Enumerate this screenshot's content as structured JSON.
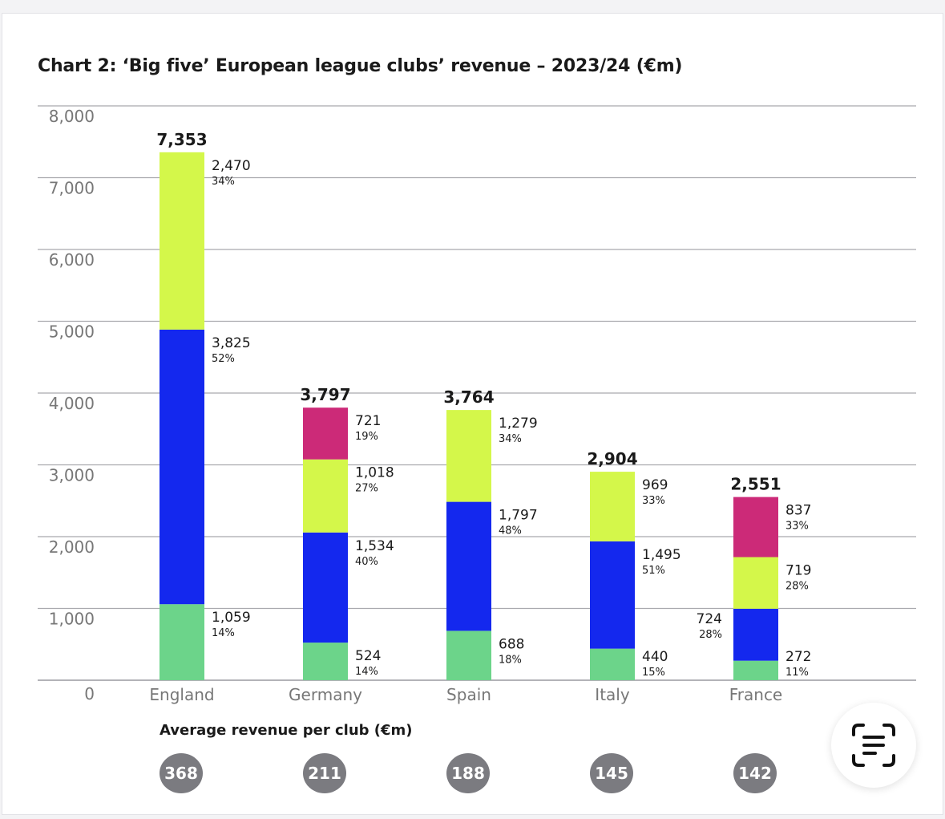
{
  "chart_title": "Chart 2: ‘Big five’ European league clubs’ revenue – 2023/24 (€m)",
  "chart_data": {
    "type": "bar",
    "stacked": true,
    "title": "Chart 2: ‘Big five’ European league clubs’ revenue – 2023/24 (€m)",
    "xlabel": "",
    "ylabel": "",
    "ylim": [
      0,
      8000
    ],
    "yticks": [
      "0",
      "1,000",
      "2,000",
      "3,000",
      "4,000",
      "5,000",
      "6,000",
      "7,000",
      "8,000"
    ],
    "ytick_values": [
      0,
      1000,
      2000,
      3000,
      4000,
      5000,
      6000,
      7000,
      8000
    ],
    "grid": true,
    "categories": [
      "England",
      "Germany",
      "Spain",
      "Italy",
      "France"
    ],
    "totals": [
      7353,
      3797,
      3764,
      2904,
      2551
    ],
    "total_labels": [
      "7,353",
      "3,797",
      "3,764",
      "2,904",
      "2,551"
    ],
    "series": [
      {
        "color": "#6cd48a",
        "values": [
          1059,
          524,
          688,
          440,
          272
        ],
        "labels": [
          "1,059",
          "524",
          "688",
          "440",
          "272"
        ],
        "percents": [
          "14%",
          "14%",
          "18%",
          "15%",
          "11%"
        ]
      },
      {
        "color": "#1428ee",
        "values": [
          3825,
          1534,
          1797,
          1495,
          724
        ],
        "labels": [
          "3,825",
          "1,534",
          "1,797",
          "1,495",
          "724"
        ],
        "percents": [
          "52%",
          "40%",
          "48%",
          "51%",
          "28%"
        ]
      },
      {
        "color": "#d4f74a",
        "values": [
          2470,
          1018,
          1279,
          969,
          719
        ],
        "labels": [
          "2,470",
          "1,018",
          "1,279",
          "969",
          "719"
        ],
        "percents": [
          "34%",
          "27%",
          "34%",
          "33%",
          "28%"
        ]
      },
      {
        "color": "#cc2a78",
        "values": [
          0,
          721,
          0,
          0,
          837
        ],
        "labels": [
          "",
          "721",
          "",
          "",
          "837"
        ],
        "percents": [
          "",
          "19%",
          "",
          "",
          "33%"
        ]
      }
    ]
  },
  "average": {
    "label": "Average revenue per club (€m)",
    "values": [
      "368",
      "211",
      "188",
      "145",
      "142"
    ]
  },
  "icons": {
    "scan": "text-scan-icon"
  }
}
